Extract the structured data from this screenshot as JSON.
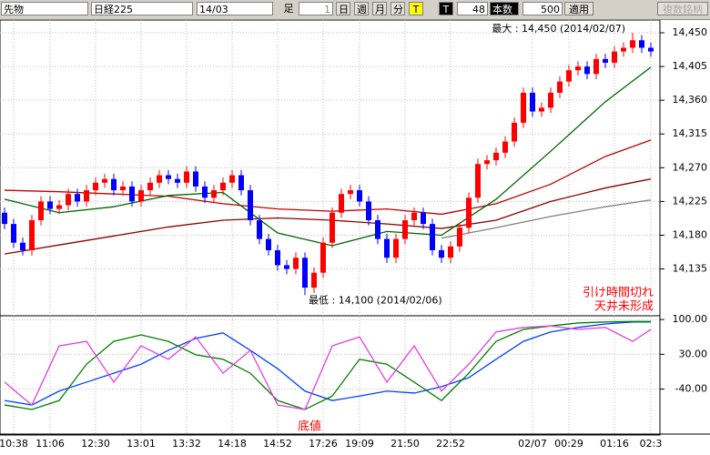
{
  "toolbar": {
    "product": "先物",
    "symbol": "日経225",
    "contract": "14/03",
    "bar_label": "足",
    "bar_count": "1",
    "day": "日",
    "week": "週",
    "month": "月",
    "minute": "分",
    "tick": "T",
    "tick2": "T",
    "period": "48",
    "count_label": "本数",
    "count": "500",
    "apply": "適用",
    "multi": "複数銘柄"
  },
  "chart_data": [
    {
      "type": "candlestick",
      "categories": [
        null,
        "10:38",
        null,
        null,
        null,
        "11:06",
        null,
        null,
        null,
        null,
        "12:30",
        null,
        null,
        null,
        null,
        "13:01",
        null,
        null,
        null,
        null,
        "13:32",
        null,
        null,
        null,
        null,
        "14:18",
        null,
        null,
        null,
        null,
        "14:52",
        null,
        null,
        null,
        null,
        "17:26",
        null,
        null,
        null,
        "19:09",
        null,
        null,
        null,
        null,
        "21:50",
        null,
        null,
        null,
        null,
        "22:52",
        null,
        null,
        null,
        null,
        null,
        null,
        null,
        null,
        "02/07",
        null,
        null,
        null,
        "00:29",
        null,
        null,
        null,
        null,
        "01:16",
        null,
        null,
        null,
        "02:3"
      ],
      "open": [
        14210,
        14195,
        14170,
        14160,
        14200,
        14225,
        14215,
        14220,
        14235,
        14225,
        14240,
        14250,
        14255,
        14240,
        14245,
        14225,
        14240,
        14250,
        14260,
        14255,
        14250,
        14265,
        14245,
        14230,
        14240,
        14250,
        14260,
        14240,
        14200,
        14175,
        14160,
        14140,
        14135,
        14150,
        14110,
        14130,
        14170,
        14210,
        14235,
        14240,
        14225,
        14200,
        14175,
        14150,
        14175,
        14200,
        14210,
        14195,
        14160,
        14150,
        14165,
        14190,
        14230,
        14275,
        14280,
        14290,
        14305,
        14330,
        14370,
        14345,
        14350,
        14370,
        14385,
        14400,
        14405,
        14395,
        14415,
        14410,
        14425,
        14430,
        14440,
        14430
      ],
      "high": [
        14217,
        14202,
        14177,
        14207,
        14232,
        14232,
        14227,
        14242,
        14242,
        14247,
        14257,
        14262,
        14262,
        14252,
        14252,
        14247,
        14257,
        14267,
        14267,
        14262,
        14272,
        14272,
        14252,
        14247,
        14257,
        14267,
        14267,
        14247,
        14207,
        14182,
        14167,
        14147,
        14157,
        14157,
        14137,
        14177,
        14217,
        14242,
        14247,
        14247,
        14232,
        14207,
        14182,
        14182,
        14207,
        14217,
        14217,
        14202,
        14167,
        14172,
        14197,
        14237,
        14282,
        14287,
        14297,
        14312,
        14337,
        14377,
        14377,
        14357,
        14377,
        14392,
        14407,
        14412,
        14412,
        14422,
        14422,
        14432,
        14437,
        14450,
        14447,
        14437
      ],
      "low": [
        14188,
        14163,
        14153,
        14153,
        14193,
        14208,
        14208,
        14213,
        14218,
        14218,
        14233,
        14243,
        14233,
        14233,
        14218,
        14218,
        14233,
        14243,
        14248,
        14243,
        14243,
        14238,
        14223,
        14223,
        14233,
        14243,
        14233,
        14193,
        14168,
        14153,
        14133,
        14128,
        14128,
        14100,
        14103,
        14123,
        14163,
        14203,
        14228,
        14218,
        14193,
        14168,
        14143,
        14143,
        14168,
        14193,
        14188,
        14153,
        14143,
        14143,
        14158,
        14183,
        14223,
        14268,
        14273,
        14283,
        14298,
        14323,
        14338,
        14338,
        14343,
        14363,
        14378,
        14393,
        14388,
        14388,
        14403,
        14403,
        14418,
        14423,
        14423,
        14418
      ],
      "close": [
        14195,
        14170,
        14160,
        14200,
        14225,
        14215,
        14220,
        14235,
        14225,
        14240,
        14250,
        14255,
        14240,
        14245,
        14225,
        14240,
        14250,
        14260,
        14255,
        14250,
        14265,
        14245,
        14230,
        14240,
        14250,
        14260,
        14240,
        14200,
        14175,
        14160,
        14140,
        14135,
        14150,
        14110,
        14130,
        14170,
        14210,
        14235,
        14240,
        14225,
        14200,
        14175,
        14150,
        14175,
        14200,
        14210,
        14195,
        14160,
        14150,
        14165,
        14190,
        14230,
        14275,
        14280,
        14290,
        14305,
        14330,
        14370,
        14345,
        14350,
        14370,
        14385,
        14400,
        14405,
        14395,
        14415,
        14410,
        14425,
        14430,
        14440,
        14430,
        14425
      ],
      "up_color": "#ff0000",
      "down_color": "#0000ff",
      "ylim": [
        14075,
        14467
      ],
      "yticks": [
        {
          "value": 14135,
          "label": "14,135"
        },
        {
          "value": 14180,
          "label": "14,180"
        },
        {
          "value": 14225,
          "label": "14,225"
        },
        {
          "value": 14270,
          "label": "14,270"
        },
        {
          "value": 14315,
          "label": "14,315"
        },
        {
          "value": 14360,
          "label": "14,360"
        },
        {
          "value": 14405,
          "label": "14,405"
        },
        {
          "value": 14450,
          "label": "14,450"
        }
      ],
      "grid": true,
      "x": [
        0,
        6,
        12,
        18,
        24,
        30,
        36,
        42,
        48,
        54,
        60,
        66,
        71
      ],
      "series": [
        {
          "color": "#8b0000",
          "values": [
            14155,
            14167,
            14179,
            14191,
            14200,
            14203,
            14200,
            14195,
            14189,
            14200,
            14225,
            14243,
            14255
          ]
        },
        {
          "color": "#c00000",
          "values": [
            14240,
            14238,
            14235,
            14232,
            14222,
            14215,
            14212,
            14215,
            14208,
            14222,
            14248,
            14285,
            14307
          ]
        },
        {
          "color": "#808080",
          "values": [
            null,
            null,
            null,
            null,
            null,
            null,
            null,
            null,
            14176,
            14190,
            14205,
            14218,
            14227
          ]
        },
        {
          "color": "#006400",
          "values": [
            14228,
            14210,
            14218,
            14233,
            14237,
            14183,
            14166,
            14185,
            14180,
            14228,
            14292,
            14358,
            14404
          ]
        }
      ],
      "max_label": "最大 : 14,450 (2014/02/07)",
      "min_label": "最低 : 14,100 (2014/02/06)",
      "notes": [
        "引け時間切れ",
        "天井未形成"
      ]
    },
    {
      "type": "line",
      "x": [
        0,
        3,
        6,
        9,
        12,
        15,
        18,
        21,
        24,
        27,
        30,
        33,
        36,
        39,
        42,
        45,
        48,
        51,
        54,
        57,
        60,
        63,
        66,
        69,
        71
      ],
      "series": [
        {
          "color": "#0040ff",
          "values": [
            -63,
            -72,
            -44,
            -26,
            -8,
            10,
            38,
            62,
            73,
            38,
            1,
            -44,
            -63,
            -54,
            -44,
            -48,
            -35,
            -17,
            20,
            56,
            75,
            84,
            91,
            95,
            95
          ]
        },
        {
          "color": "#008000",
          "values": [
            -72,
            -81,
            -63,
            10,
            56,
            69,
            56,
            29,
            20,
            -8,
            -63,
            -81,
            -54,
            20,
            10,
            -26,
            -63,
            -8,
            56,
            80,
            87,
            93,
            95,
            96,
            96
          ]
        },
        {
          "color": "#e040e0",
          "values": [
            -26,
            -72,
            47,
            56,
            -26,
            47,
            20,
            65,
            -8,
            38,
            -72,
            -81,
            47,
            65,
            -26,
            47,
            -44,
            10,
            75,
            84,
            87,
            80,
            84,
            56,
            80
          ]
        }
      ],
      "ylim": [
        -103,
        102
      ],
      "yticks": [
        {
          "value": 100,
          "label": "100.00"
        },
        {
          "value": 30,
          "label": "30.00"
        },
        {
          "value": -40,
          "label": "-40.00"
        }
      ],
      "grid": true,
      "annotation": "底値"
    }
  ]
}
